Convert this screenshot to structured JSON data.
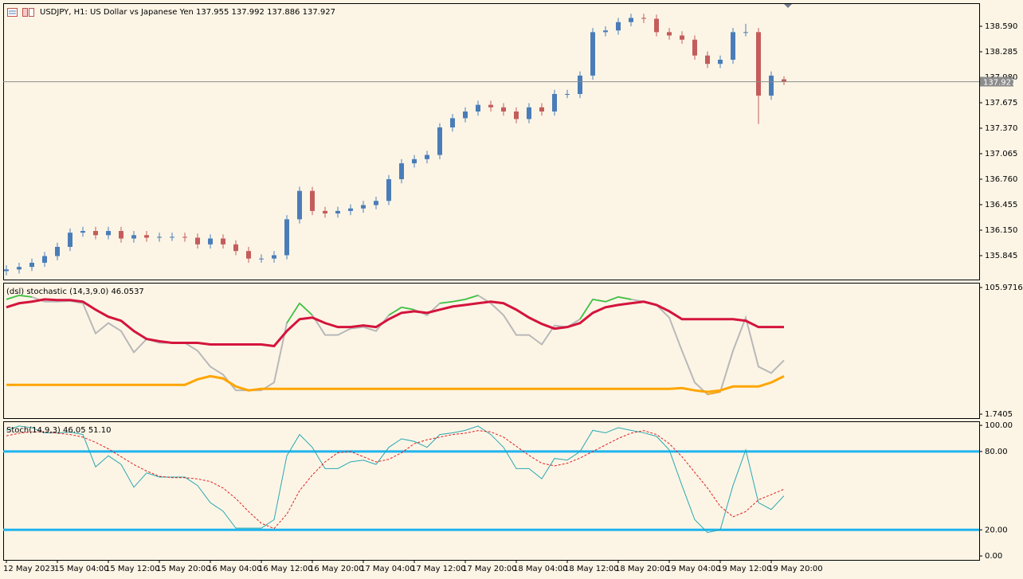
{
  "chart_data": [
    {
      "type": "candlestick",
      "title": "USDJPY, H1:  US Dollar vs Japanese Yen  137.955 137.992 137.886 137.927",
      "categories": [
        "12 May 2023",
        null,
        null,
        null,
        "15 May 04:00",
        null,
        null,
        null,
        "15 May 12:00",
        null,
        null,
        null,
        "15 May 20:00",
        null,
        null,
        null,
        "16 May 04:00",
        null,
        null,
        null,
        "16 May 12:00",
        null,
        null,
        null,
        "16 May 20:00",
        null,
        null,
        null,
        "17 May 04:00",
        null,
        null,
        null,
        "17 May 12:00",
        null,
        null,
        null,
        "17 May 20:00",
        null,
        null,
        null,
        "18 May 04:00",
        null,
        null,
        null,
        "18 May 12:00",
        null,
        null,
        null,
        "18 May 20:00",
        null,
        null,
        null,
        "19 May 04:00",
        null,
        null,
        null,
        "19 May 12:00",
        null,
        null,
        null,
        "19 May 20:00",
        null
      ],
      "open": [
        135.66,
        135.68,
        135.71,
        135.76,
        135.84,
        135.95,
        136.12,
        136.14,
        136.09,
        136.14,
        136.05,
        136.09,
        136.06,
        136.07,
        136.07,
        136.06,
        135.98,
        136.05,
        135.98,
        135.9,
        135.81,
        135.81,
        135.85,
        136.28,
        136.62,
        136.38,
        136.35,
        136.38,
        136.41,
        136.45,
        136.5,
        136.76,
        136.95,
        137.0,
        137.05,
        137.38,
        137.49,
        137.57,
        137.65,
        137.62,
        137.57,
        137.48,
        137.62,
        137.57,
        137.78,
        137.78,
        138.0,
        138.52,
        138.54,
        138.64,
        138.69,
        138.68,
        138.52,
        138.48,
        138.43,
        138.24,
        138.14,
        138.19,
        138.52,
        138.52,
        137.76,
        137.955
      ],
      "high": [
        135.73,
        135.76,
        135.81,
        135.89,
        136.0,
        136.17,
        136.19,
        136.19,
        136.19,
        136.19,
        136.14,
        136.14,
        136.12,
        136.12,
        136.12,
        136.11,
        136.1,
        136.1,
        136.03,
        135.95,
        135.86,
        135.9,
        136.33,
        136.67,
        136.67,
        136.43,
        136.43,
        136.46,
        136.5,
        136.55,
        136.81,
        137.0,
        137.05,
        137.1,
        137.43,
        137.54,
        137.62,
        137.7,
        137.7,
        137.67,
        137.62,
        137.67,
        137.67,
        137.83,
        137.83,
        138.05,
        138.57,
        138.59,
        138.69,
        138.74,
        138.74,
        138.73,
        138.57,
        138.53,
        138.48,
        138.29,
        138.24,
        138.57,
        138.62,
        138.57,
        138.05,
        137.992
      ],
      "low": [
        135.61,
        135.63,
        135.66,
        135.71,
        135.79,
        135.9,
        136.07,
        136.04,
        136.04,
        136.0,
        136.0,
        136.01,
        136.01,
        136.02,
        136.01,
        135.93,
        135.93,
        135.93,
        135.85,
        135.76,
        135.76,
        135.76,
        135.8,
        136.23,
        136.33,
        136.3,
        136.3,
        136.33,
        136.36,
        136.4,
        136.45,
        136.71,
        136.9,
        136.95,
        137.0,
        137.33,
        137.44,
        137.52,
        137.57,
        137.52,
        137.43,
        137.43,
        137.52,
        137.52,
        137.73,
        137.73,
        137.95,
        138.47,
        138.49,
        138.59,
        138.63,
        138.47,
        138.43,
        138.38,
        138.19,
        138.09,
        138.09,
        138.14,
        138.47,
        137.42,
        137.71,
        137.886
      ],
      "close": [
        135.68,
        135.71,
        135.76,
        135.84,
        135.95,
        136.12,
        136.14,
        136.09,
        136.14,
        136.05,
        136.09,
        136.06,
        136.07,
        136.07,
        136.06,
        135.98,
        136.05,
        135.98,
        135.9,
        135.81,
        135.81,
        135.85,
        136.28,
        136.62,
        136.38,
        136.35,
        136.38,
        136.41,
        136.45,
        136.5,
        136.76,
        136.95,
        137.0,
        137.05,
        137.38,
        137.49,
        137.57,
        137.65,
        137.62,
        137.57,
        137.48,
        137.62,
        137.57,
        137.78,
        137.78,
        138.0,
        138.52,
        138.54,
        138.64,
        138.69,
        138.68,
        138.52,
        138.48,
        138.43,
        138.24,
        138.14,
        138.19,
        138.52,
        138.52,
        137.76,
        138.0,
        137.927
      ],
      "up_color": "#4a7db8",
      "down_color": "#c45c5c",
      "ylim": [
        135.559,
        138.857
      ],
      "yticks": [
        {
          "value": 138.59,
          "label": "138.590"
        },
        138.285,
        {
          "value": 137.98,
          "label": "137.980"
        },
        137.675,
        {
          "value": 137.37,
          "label": "137.370"
        },
        137.065,
        {
          "value": 136.76,
          "label": "136.760"
        },
        136.455,
        {
          "value": 136.15,
          "label": "136.150"
        },
        135.845
      ],
      "current_price": {
        "value": 137.927,
        "label": "137.927"
      }
    },
    {
      "type": "line",
      "title": "(dsl) stochastic (14,3,9.0) 46.0537",
      "ylim": [
        -1.52,
        109.23
      ],
      "yticks": [
        105.9716,
        1.7405
      ],
      "above_color": "#32c832",
      "below_color": "#ffa500",
      "series": [
        {
          "color": "#b8b8b8",
          "width": 2,
          "values": [
            96.2,
            99.5,
            98.2,
            94.3,
            94.3,
            94.9,
            93.0,
            68.2,
            76.7,
            70.1,
            52.6,
            63.6,
            60.4,
            60.4,
            60.4,
            53.9,
            40.8,
            34.3,
            21.3,
            21.3,
            21.3,
            27.8,
            76.7,
            93.0,
            83.2,
            66.9,
            66.9,
            72.1,
            73.4,
            70.1,
            83.2,
            89.7,
            87.7,
            83.2,
            93.0,
            94.3,
            96.2,
            99.5,
            93.0,
            83.2,
            66.9,
            66.9,
            59.1,
            74.7,
            73.4,
            79.9,
            96.2,
            94.3,
            98.2,
            96.2,
            94.3,
            91.6,
            81.2,
            53.9,
            27.8,
            18.0,
            20.0,
            53.9,
            81.2,
            40.8,
            35.6,
            46.05
          ]
        },
        {
          "color": "#d4143c",
          "width": 3,
          "values": [
            89.7,
            93.0,
            94.3,
            96.2,
            95.6,
            95.6,
            94.3,
            87.7,
            81.9,
            78.6,
            70.1,
            63.6,
            61.7,
            60.4,
            60.4,
            60.4,
            59.1,
            59.1,
            59.1,
            59.1,
            59.1,
            57.8,
            70.1,
            79.9,
            81.2,
            76.7,
            73.4,
            73.4,
            74.7,
            73.4,
            79.9,
            85.1,
            86.4,
            85.1,
            87.7,
            90.3,
            91.6,
            93.0,
            94.3,
            93.0,
            87.7,
            81.2,
            76.0,
            72.1,
            73.4,
            76.7,
            85.1,
            89.7,
            91.6,
            93.0,
            94.3,
            91.6,
            86.4,
            79.9,
            79.9,
            79.9,
            79.9,
            79.9,
            78.6,
            73.4,
            73.4,
            73.4
          ]
        },
        {
          "color": "#ffa500",
          "width": 3,
          "values": [
            25.8,
            25.8,
            25.8,
            25.8,
            25.8,
            25.8,
            25.8,
            25.8,
            25.8,
            25.8,
            25.8,
            25.8,
            25.8,
            25.8,
            25.8,
            30.4,
            33.0,
            31.1,
            24.5,
            21.3,
            22.6,
            22.6,
            22.6,
            22.6,
            22.6,
            22.6,
            22.6,
            22.6,
            22.6,
            22.6,
            22.6,
            22.6,
            22.6,
            22.6,
            22.6,
            22.6,
            22.6,
            22.6,
            22.6,
            22.6,
            22.6,
            22.6,
            22.6,
            22.6,
            22.6,
            22.6,
            22.6,
            22.6,
            22.6,
            22.6,
            22.6,
            22.6,
            22.6,
            23.2,
            21.3,
            20.0,
            21.3,
            24.5,
            24.5,
            24.5,
            27.8,
            33.0
          ]
        }
      ]
    },
    {
      "type": "line",
      "title": "Stoch(14,9,3) 46.05 51.10",
      "ylim": [
        -3,
        102.5
      ],
      "yticks": [
        {
          "value": 100,
          "label": "100.00"
        },
        {
          "value": 80,
          "label": "80.00"
        },
        {
          "value": 20,
          "label": "20.00"
        },
        {
          "value": 0,
          "label": "0.00"
        }
      ],
      "levels": [
        80,
        20
      ],
      "level_color": "#1eb4ee",
      "series": [
        {
          "color": "#2aa8b0",
          "width": 1,
          "values": [
            96.2,
            99.5,
            98.2,
            94.3,
            94.3,
            94.9,
            93.0,
            68.2,
            76.7,
            70.1,
            52.6,
            63.6,
            60.4,
            60.4,
            60.4,
            53.9,
            40.8,
            34.3,
            21.3,
            21.3,
            21.3,
            27.8,
            76.7,
            93.0,
            83.2,
            66.9,
            66.9,
            72.1,
            73.4,
            70.1,
            83.2,
            89.7,
            87.7,
            83.2,
            93.0,
            94.3,
            96.2,
            99.5,
            93.0,
            83.2,
            66.9,
            66.9,
            59.1,
            74.7,
            73.4,
            79.9,
            96.2,
            94.3,
            98.2,
            96.2,
            94.3,
            91.6,
            81.2,
            53.9,
            27.8,
            18.0,
            20.0,
            53.9,
            81.2,
            40.8,
            35.6,
            46.05
          ]
        },
        {
          "color": "#e02020",
          "width": 1,
          "dashed": true,
          "values": [
            92,
            94,
            95,
            95,
            94,
            93,
            91,
            87,
            82,
            76,
            70,
            65,
            61,
            60,
            60,
            59,
            57,
            52,
            44,
            34,
            25,
            21,
            32,
            50,
            62,
            72,
            79,
            80,
            76,
            72,
            74,
            79,
            86,
            89,
            91,
            93,
            94,
            96,
            95,
            91,
            84,
            77,
            71,
            69,
            71,
            75,
            80,
            85,
            90,
            94,
            96,
            93,
            86,
            76,
            64,
            52,
            38,
            30,
            34,
            43,
            47,
            51.1
          ]
        }
      ]
    }
  ]
}
